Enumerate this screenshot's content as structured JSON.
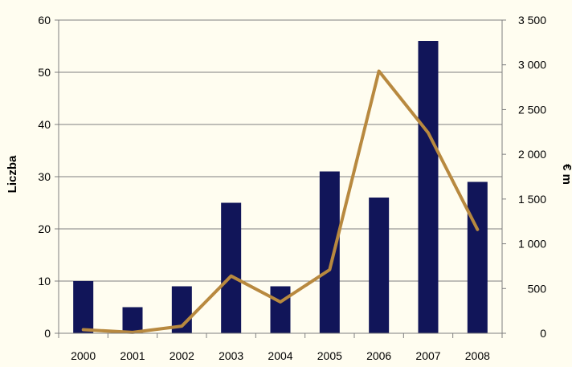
{
  "chart_data": {
    "type": "bar",
    "categories": [
      "2000",
      "2001",
      "2002",
      "2003",
      "2004",
      "2005",
      "2006",
      "2007",
      "2008"
    ],
    "series": [
      {
        "name": "",
        "type": "bar",
        "axis": "left",
        "values": [
          10,
          5,
          9,
          25,
          9,
          31,
          26,
          56,
          29
        ]
      },
      {
        "name": "",
        "type": "line",
        "axis": "right",
        "values": [
          40,
          10,
          80,
          640,
          350,
          710,
          2930,
          2240,
          1160
        ]
      }
    ],
    "ylabel": "Liczba",
    "ylabel_right": "€ m",
    "ylim": [
      0,
      60
    ],
    "ylim_right": [
      0,
      3500
    ],
    "yticks": [
      "0",
      "10",
      "20",
      "30",
      "40",
      "50",
      "60"
    ],
    "yticks_right": [
      "0",
      "500",
      "1 000",
      "1 500",
      "2 000",
      "2 500",
      "3 000",
      "3 500"
    ],
    "grid": true,
    "colors": {
      "background": "#fffdf0",
      "bar": "#111559",
      "line": "#b8893f",
      "grid": "#7f7f7f"
    }
  }
}
